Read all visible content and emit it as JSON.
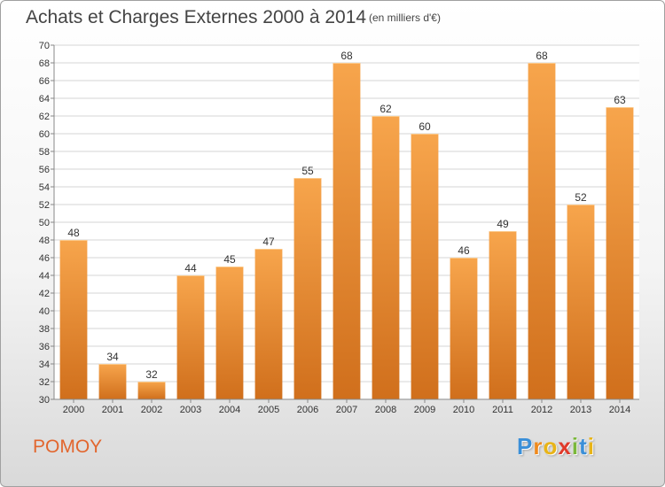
{
  "title": "Achats et Charges Externes 2000 à 2014",
  "subtitle": "(en milliers d'€)",
  "place": "POMOY",
  "logo": {
    "letters": [
      "P",
      "r",
      "o",
      "x",
      "i",
      "t",
      "i"
    ],
    "colors": [
      "#3a8fd8",
      "#f08a1c",
      "#e8b418",
      "#e03a2a",
      "#7ab83a",
      "#3a8fd8",
      "#e8b418"
    ]
  },
  "colors": {
    "bar_light": "#f7a54c",
    "bar_dark": "#d06f1c",
    "title": "#444444",
    "place": "#e2662e"
  },
  "chart_data": {
    "type": "bar",
    "categories": [
      "2000",
      "2001",
      "2002",
      "2003",
      "2004",
      "2005",
      "2006",
      "2007",
      "2008",
      "2009",
      "2010",
      "2011",
      "2012",
      "2013",
      "2014"
    ],
    "values": [
      48,
      34,
      32,
      44,
      45,
      47,
      55,
      68,
      62,
      60,
      46,
      49,
      68,
      52,
      63
    ],
    "title": "Achats et Charges Externes 2000 à 2014",
    "subtitle": "(en milliers d'€)",
    "xlabel": "",
    "ylabel": "",
    "ylim": [
      30,
      70
    ],
    "ytick_step": 2,
    "grid": true,
    "legend": "none"
  }
}
